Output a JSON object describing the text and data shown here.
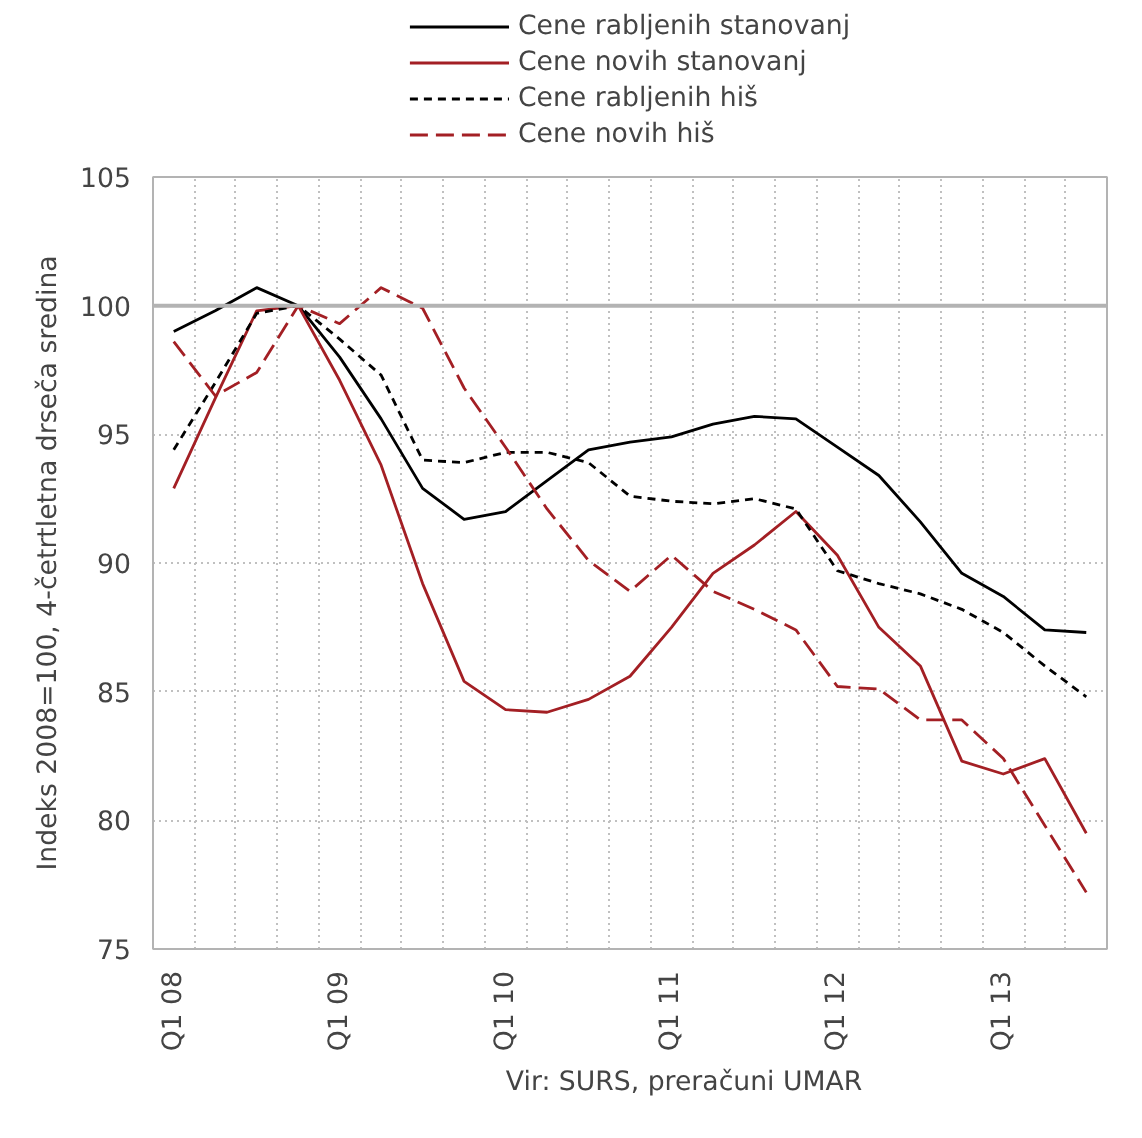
{
  "chart_data": {
    "type": "line",
    "ylabel": "Indeks 2008=100, 4-četrtletna drseča sredina",
    "categories": [
      "Q1 08",
      null,
      null,
      null,
      "Q1 09",
      null,
      null,
      null,
      "Q1 10",
      null,
      null,
      null,
      "Q1 11",
      null,
      null,
      null,
      "Q1 12",
      null,
      null,
      null,
      "Q1 13",
      null,
      null
    ],
    "series": [
      {
        "name": "Cene rabljenih stanovanj",
        "color": "#000000",
        "line_style": "solid",
        "values": [
          99.0,
          99.8,
          100.7,
          100.0,
          98.0,
          95.6,
          92.9,
          91.7,
          92.0,
          93.2,
          94.4,
          94.7,
          94.9,
          95.4,
          95.7,
          95.6,
          94.5,
          93.4,
          91.6,
          89.6,
          88.7,
          87.4,
          87.3
        ]
      },
      {
        "name": "Cene novih stanovanj",
        "color": "#a31f24",
        "line_style": "solid",
        "values": [
          92.9,
          96.4,
          99.8,
          100.0,
          97.1,
          93.8,
          89.2,
          85.4,
          84.3,
          84.2,
          84.7,
          85.6,
          87.5,
          89.6,
          90.7,
          92.0,
          90.3,
          87.5,
          86.0,
          82.3,
          81.8,
          82.4,
          79.5
        ]
      },
      {
        "name": "Cene rabljenih hiš",
        "color": "#000000",
        "line_style": "dashed",
        "values": [
          94.4,
          97.0,
          99.7,
          100.0,
          98.7,
          97.3,
          94.0,
          93.9,
          94.3,
          94.3,
          93.9,
          92.6,
          92.4,
          92.3,
          92.5,
          92.1,
          89.7,
          89.2,
          88.8,
          88.2,
          87.3,
          86.0,
          84.8
        ]
      },
      {
        "name": "Cene novih hiš",
        "color": "#a31f24",
        "line_style": "dashed",
        "values": [
          98.6,
          96.5,
          97.4,
          100.0,
          99.3,
          100.7,
          99.9,
          96.8,
          94.5,
          92.1,
          90.1,
          88.9,
          90.3,
          88.9,
          88.2,
          87.4,
          85.2,
          85.1,
          83.9,
          83.9,
          82.4,
          79.8,
          77.2
        ]
      }
    ],
    "ylim": [
      75,
      105
    ],
    "yticks": [
      75,
      80,
      85,
      90,
      95,
      100,
      105
    ],
    "grid": true,
    "legend": "top",
    "ref_lines": [
      {
        "axis": "y",
        "value": 100,
        "label": null,
        "color": "#b3b3b3"
      }
    ],
    "annotations": [
      "Vir: SURS, preračuni UMAR"
    ]
  }
}
